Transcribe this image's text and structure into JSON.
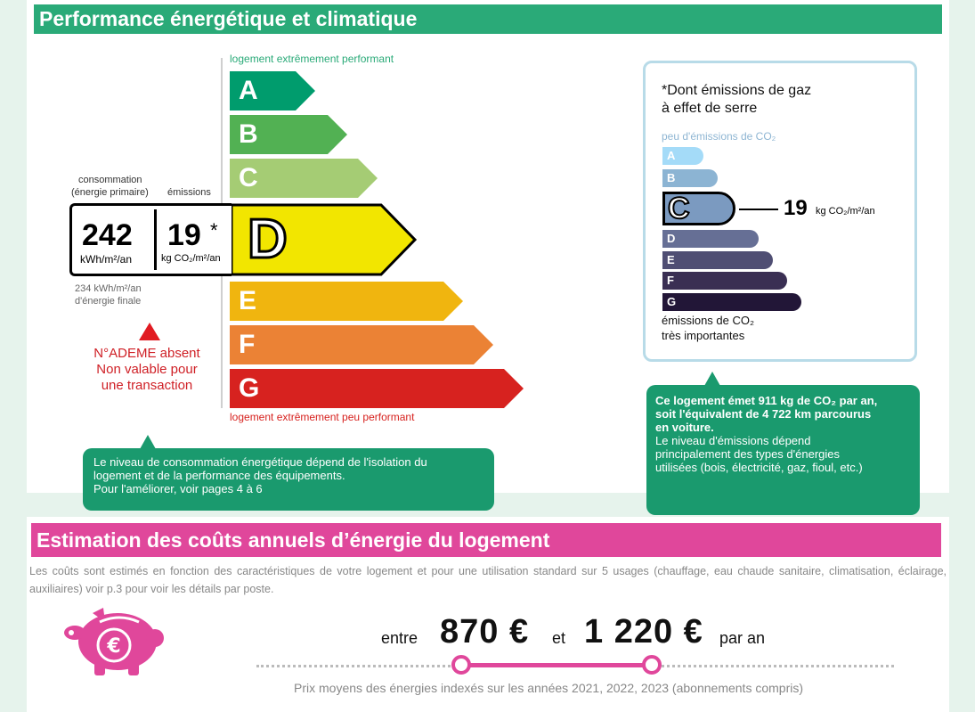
{
  "energy": {
    "title": "Performance énergétique et climatique",
    "top_label": "logement extrêmement performant",
    "bottom_label": "logement extrêmement peu performant",
    "bands": [
      "A",
      "B",
      "C",
      "D",
      "E",
      "F",
      "G"
    ],
    "band_colors": [
      "#009c6d",
      "#52b153",
      "#a5cc74",
      "#f2e600",
      "#f0b50f",
      "#eb8235",
      "#d7221f"
    ],
    "current_class": "D",
    "consumption_label_1": "consommation",
    "consumption_label_2": "(énergie primaire)",
    "emissions_label": "émissions",
    "consumption_value": "242",
    "consumption_unit": "kWh/m²/an",
    "emissions_value": "19",
    "emissions_star": "*",
    "emissions_unit": "kg CO₂/m²/an",
    "final_energy_1": "234 kWh/m²/an",
    "final_energy_2": "d'énergie finale",
    "warning_1": "N°ADEME absent",
    "warning_2": "Non valable pour",
    "warning_3": "une transaction",
    "callout_1": "Le niveau de consommation énergétique dépend de l'isolation du",
    "callout_2": "logement et de la performance des équipements.",
    "callout_3": "Pour l'améliorer, voir pages 4 à 6"
  },
  "climate": {
    "title_1": "*Dont émissions de gaz",
    "title_2": "à effet de serre",
    "top_label": "peu d'émissions de CO₂",
    "bottom_label_1": "émissions de CO₂",
    "bottom_label_2": "très importantes",
    "bands": [
      "A",
      "B",
      "C",
      "D",
      "E",
      "F",
      "G"
    ],
    "band_colors": [
      "#a4dbf8",
      "#8cb4d3",
      "#7b9ac0",
      "#666f95",
      "#4f4e73",
      "#3a2f53",
      "#221637"
    ],
    "current_class": "C",
    "value": "19",
    "unit": "kg CO₂/m²/an",
    "callout_1": "Ce logement émet 911 kg de CO₂ par an,",
    "callout_2": "soit l'équivalent de 4 722 km parcourus",
    "callout_3": "en voiture.",
    "callout_4": "Le niveau d'émissions dépend",
    "callout_5": "principalement des types d'énergies",
    "callout_6": "utilisées (bois, électricité, gaz, fioul, etc.)"
  },
  "costs": {
    "title": "Estimation des coûts annuels d’énergie du logement",
    "intro": "Les coûts sont estimés en fonction des caractéristiques de votre logement et pour une utilisation standard sur 5 usages (chauffage, eau chaude sanitaire, climatisation, éclairage, auxiliaires) voir p.3 pour voir les détails par poste.",
    "between": "entre",
    "low": "870 €",
    "and": "et",
    "high": "1 220 €",
    "per_year": "par an",
    "footnote": "Prix moyens des énergies indexés sur les années 2021, 2022, 2023 (abonnements compris)",
    "accent_color": "#e0479b"
  }
}
